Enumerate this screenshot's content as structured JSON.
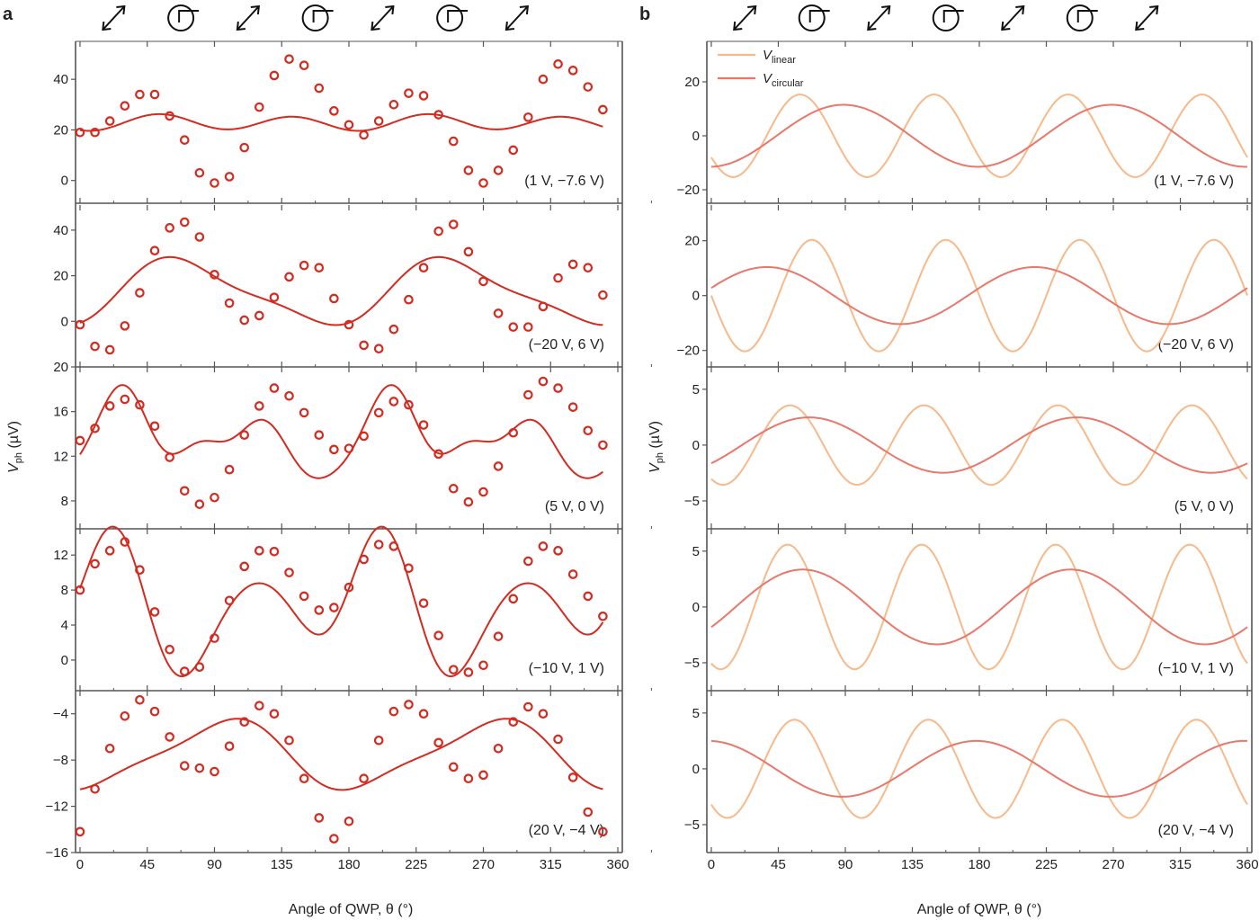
{
  "panel_letters": [
    "a",
    "b"
  ],
  "xlabel": "Angle of QWP, θ (°)",
  "ylabel": {
    "main": "V",
    "sub": "ph",
    "unit": " (µV)"
  },
  "legend": [
    {
      "main": "V",
      "sub": "linear"
    },
    {
      "main": "V",
      "sub": "circular"
    }
  ],
  "colors": {
    "data_red": "#d42a1f",
    "linear": "#f7b98a",
    "circular": "#e9776a",
    "axis": "#555555"
  },
  "polarization_icons": [
    "double-arrow-icon",
    "circle-icon",
    "double-arrow-icon",
    "circle-icon",
    "double-arrow-icon",
    "circle-icon",
    "double-arrow-icon"
  ],
  "chart_data": [
    {
      "panel": "a",
      "type": "scatter",
      "x_ticks": [
        0,
        45,
        90,
        135,
        180,
        225,
        270,
        315,
        360
      ],
      "x_tick_labels": [
        "0",
        "45",
        "90",
        "135",
        "180",
        "225",
        "270",
        "315",
        "360"
      ],
      "xlim": [
        -3,
        363
      ],
      "rows": [
        {
          "condition": "(1 V, −7.6 V)",
          "ylim": [
            -9,
            55
          ],
          "y_ticks": [
            0,
            20,
            40
          ],
          "y_tick_labels": [
            "0",
            "20",
            "40"
          ],
          "points": {
            "x": [
              0,
              10,
              20,
              30,
              40,
              50,
              60,
              70,
              80,
              90,
              100,
              110,
              120,
              130,
              140,
              150,
              160,
              170,
              180,
              190,
              200,
              210,
              220,
              230,
              240,
              250,
              260,
              270,
              280,
              290,
              300,
              310,
              320,
              330,
              340,
              350
            ],
            "y": [
              19,
              19,
              23.5,
              29.5,
              34,
              34,
              25.5,
              16,
              3,
              -1,
              1.5,
              13,
              29,
              41.5,
              48,
              45.5,
              36.5,
              27.5,
              22,
              18,
              23.5,
              30,
              34.5,
              33.5,
              26,
              15.5,
              4,
              -1,
              4,
              12,
              25,
              40,
              46,
              43.5,
              37,
              28
            ]
          },
          "fit": {
            "const": 22.82,
            "a2": -0.41,
            "b2": 0.42,
            "a4": -2.52,
            "b4": -1.44,
            "a6": 0,
            "b6": 0,
            "a8": 0,
            "b8": 0
          }
        },
        {
          "condition": "(−20 V, 6 V)",
          "ylim": [
            -20,
            51
          ],
          "y_ticks": [
            0,
            20,
            40
          ],
          "y_tick_labels": [
            "0",
            "20",
            "40"
          ],
          "points": {
            "x": [
              0,
              10,
              20,
              30,
              40,
              50,
              60,
              70,
              80,
              90,
              100,
              110,
              120,
              130,
              140,
              150,
              160,
              170,
              180,
              190,
              200,
              210,
              220,
              230,
              240,
              250,
              260,
              270,
              280,
              290,
              300,
              310,
              320,
              330,
              340,
              350
            ],
            "y": [
              -1.5,
              -11,
              -12.5,
              -2,
              12.5,
              31,
              41,
              43.5,
              37,
              20.5,
              8,
              0.5,
              2.5,
              10.5,
              19.5,
              24.5,
              23.5,
              10,
              -1.5,
              -10.5,
              -12,
              -3.5,
              9.5,
              23.5,
              39.5,
              42.5,
              30.5,
              17.5,
              3.5,
              -2.5,
              -2.5,
              6.5,
              19,
              25,
              23.5,
              11.5
            ]
          },
          "fit": {
            "const": 12.69,
            "a2": -10.18,
            "b2": 9.03,
            "a4": -3.15,
            "b4": -1.17,
            "a6": 0,
            "b6": 0,
            "a8": 0,
            "b8": 0
          }
        },
        {
          "condition": "(5 V, 0 V)",
          "ylim": [
            5.5,
            20
          ],
          "y_ticks": [
            8,
            12,
            16,
            20
          ],
          "y_tick_labels": [
            "8",
            "12",
            "16",
            "20"
          ],
          "points": {
            "x": [
              0,
              10,
              20,
              30,
              40,
              50,
              60,
              70,
              80,
              90,
              100,
              110,
              120,
              130,
              140,
              150,
              160,
              170,
              180,
              190,
              200,
              210,
              220,
              230,
              240,
              250,
              260,
              270,
              280,
              290,
              300,
              310,
              320,
              330,
              340,
              350
            ],
            "y": [
              13.4,
              14.5,
              16.5,
              17.1,
              16.6,
              14.7,
              11.9,
              8.9,
              7.7,
              8.3,
              10.8,
              13.9,
              16.5,
              18.1,
              17.4,
              15.9,
              13.9,
              12.6,
              12.7,
              13.8,
              15.9,
              16.9,
              16.6,
              14.8,
              12.2,
              9.1,
              7.9,
              8.8,
              11.1,
              14.1,
              17.5,
              18.7,
              18.1,
              16.4,
              14.3,
              13
            ]
          },
          "fit": {
            "const": 13.66,
            "a2": -0.15,
            "b2": 1.36,
            "a4": -0.81,
            "b4": 2.53,
            "a6": -0.44,
            "b6": 0.6,
            "a8": -0.11,
            "b8": -0.56
          }
        },
        {
          "condition": "(−10 V, 1 V)",
          "ylim": [
            -3.5,
            15
          ],
          "y_ticks": [
            0,
            4,
            8,
            12
          ],
          "y_tick_labels": [
            "0",
            "4",
            "8",
            "12"
          ],
          "points": {
            "x": [
              0,
              10,
              20,
              30,
              40,
              50,
              60,
              70,
              80,
              90,
              100,
              110,
              120,
              130,
              140,
              150,
              160,
              170,
              180,
              190,
              200,
              210,
              220,
              230,
              240,
              250,
              260,
              270,
              280,
              290,
              300,
              310,
              320,
              330,
              340,
              350
            ],
            "y": [
              8,
              11,
              12.5,
              13.5,
              10.3,
              5.5,
              1.2,
              -1.3,
              -0.8,
              2.5,
              6.8,
              10.7,
              12.5,
              12.4,
              10,
              7.3,
              5.7,
              6,
              8.3,
              11.5,
              13.2,
              13,
              10.5,
              6.5,
              2.8,
              -1.1,
              -1.4,
              -0.6,
              2.7,
              7,
              11.3,
              13,
              12.5,
              9.8,
              7.3,
              5
            ]
          },
          "fit": {
            "const": 6.19,
            "a2": 3.34,
            "b2": 0.12,
            "a4": -0.56,
            "b4": 5.63,
            "a6": -0.79,
            "b6": 0.59,
            "a8": 0,
            "b8": 0
          }
        },
        {
          "condition": "(20 V, −4 V)",
          "ylim": [
            -16,
            -2
          ],
          "y_ticks": [
            -16,
            -12,
            -8,
            -4
          ],
          "y_tick_labels": [
            "−16",
            "−12",
            "−8",
            "−4"
          ],
          "points": {
            "x": [
              0,
              10,
              20,
              30,
              40,
              50,
              60,
              70,
              80,
              90,
              100,
              110,
              120,
              130,
              140,
              150,
              160,
              170,
              180,
              190,
              200,
              210,
              220,
              230,
              240,
              250,
              260,
              270,
              280,
              290,
              300,
              310,
              320,
              330,
              340,
              350
            ],
            "y": [
              -14.2,
              -10.5,
              -7,
              -4.2,
              -2.8,
              -3.8,
              -6,
              -8.5,
              -8.7,
              -9,
              -6.8,
              -4.7,
              -3.3,
              -4,
              -6.3,
              -9.6,
              -13,
              -14.8,
              -13.3,
              -9.6,
              -6.3,
              -3.8,
              -3.2,
              -4,
              -6.5,
              -8.6,
              -9.6,
              -9.3,
              -7,
              -4.7,
              -3.4,
              -4,
              -6.2,
              -9.5,
              -12.5,
              -14.2
            ]
          },
          "fit": {
            "const": -7.54,
            "a2": -2.79,
            "b2": -0.55,
            "a4": -0.2,
            "b4": 0.6,
            "a6": 0,
            "b6": 0,
            "a8": 0,
            "b8": 0
          }
        }
      ]
    },
    {
      "panel": "b",
      "type": "line",
      "x_ticks": [
        0,
        45,
        90,
        135,
        180,
        225,
        270,
        315,
        360
      ],
      "x_tick_labels": [
        "0",
        "45",
        "90",
        "135",
        "180",
        "225",
        "270",
        "315",
        "360"
      ],
      "xlim": [
        -3,
        363
      ],
      "rows": [
        {
          "condition": "(1 V, −7.6 V)",
          "ylim": [
            -25,
            35
          ],
          "y_ticks": [
            -20,
            0,
            20
          ],
          "y_tick_labels": [
            "−20",
            "0",
            "20"
          ],
          "linear": {
            "amp": 15.3,
            "phase": 3.69
          },
          "circular": {
            "amp": 11.5,
            "phase": -1.53
          }
        },
        {
          "condition": "(−20 V, 6 V)",
          "ylim": [
            -26,
            33
          ],
          "y_ticks": [
            -20,
            0,
            20
          ],
          "y_tick_labels": [
            "−20",
            "0",
            "20"
          ],
          "linear": {
            "amp": 20.3,
            "phase": 3.14
          },
          "circular": {
            "amp": 10.4,
            "phase": 0.27
          }
        },
        {
          "condition": "(5 V, 0 V)",
          "ylim": [
            -7.5,
            7
          ],
          "y_ticks": [
            -5,
            0,
            5
          ],
          "y_tick_labels": [
            "−5",
            "0",
            "5"
          ],
          "linear": {
            "amp": 3.56,
            "phase": -2.12
          },
          "circular": {
            "amp": 2.48,
            "phase": -0.72
          }
        },
        {
          "condition": "(−10 V, 1 V)",
          "ylim": [
            -7.5,
            7
          ],
          "y_ticks": [
            -5,
            0,
            5
          ],
          "y_tick_labels": [
            "−5",
            "0",
            "5"
          ],
          "linear": {
            "amp": 5.58,
            "phase": -2.01
          },
          "circular": {
            "amp": 3.35,
            "phase": -0.57
          }
        },
        {
          "condition": "(20 V, −4 V)",
          "ylim": [
            -7.5,
            7
          ],
          "y_ticks": [
            -5,
            0,
            5
          ],
          "y_tick_labels": [
            "−5",
            "0",
            "5"
          ],
          "linear": {
            "amp": 4.4,
            "phase": -2.33
          },
          "circular": {
            "amp": 2.5,
            "phase": 1.64
          }
        }
      ]
    }
  ]
}
